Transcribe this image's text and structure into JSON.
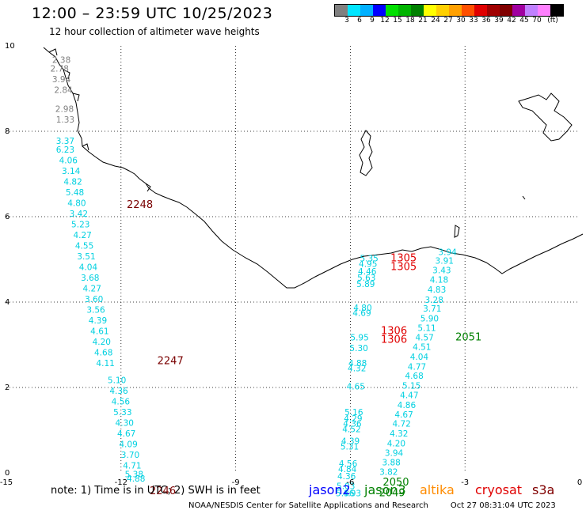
{
  "header": {
    "title": "12:00 – 23:59 UTC 10/25/2023",
    "subtitle": "12 hour collection of altimeter wave heights"
  },
  "colorbar": {
    "unit": "(ft)",
    "colors": [
      "#808080",
      "#00e5ff",
      "#00b0ff",
      "#0000ff",
      "#00e000",
      "#00b400",
      "#008000",
      "#ffff00",
      "#ffd000",
      "#ffa000",
      "#ff5000",
      "#e00000",
      "#a00000",
      "#800000",
      "#a000a0",
      "#c080ff",
      "#ff80ff",
      "#000000"
    ],
    "labels": [
      "3",
      "6",
      "9",
      "12",
      "15",
      "18",
      "21",
      "24",
      "27",
      "30",
      "33",
      "36",
      "39",
      "42",
      "45",
      "70"
    ]
  },
  "axes": {
    "x_ticks": [
      "-15",
      "-12",
      "-9",
      "-6",
      "-3",
      "0"
    ],
    "y_ticks": [
      "10",
      "8",
      "6",
      "4",
      "2",
      "0"
    ],
    "x_range": [
      -15,
      0
    ],
    "y_range": [
      0,
      10
    ]
  },
  "tracks": [
    {
      "color": "#808080",
      "points": [
        {
          "lon": -13.8,
          "lat": 9.6,
          "v": "2.38"
        },
        {
          "lon": -13.85,
          "lat": 9.4,
          "v": "2.78"
        },
        {
          "lon": -13.8,
          "lat": 9.15,
          "v": "3.94"
        },
        {
          "lon": -13.75,
          "lat": 8.9,
          "v": "2.84"
        },
        {
          "lon": -13.72,
          "lat": 8.45,
          "v": "2.98"
        },
        {
          "lon": -13.7,
          "lat": 8.2,
          "v": "1.33"
        }
      ]
    },
    {
      "color": "#00d0e0",
      "points": [
        {
          "lon": -13.7,
          "lat": 7.7,
          "v": "3.37"
        },
        {
          "lon": -13.7,
          "lat": 7.5,
          "v": "6.23"
        },
        {
          "lon": -13.62,
          "lat": 7.25,
          "v": "4.06"
        },
        {
          "lon": -13.55,
          "lat": 7.0,
          "v": "3.14"
        },
        {
          "lon": -13.5,
          "lat": 6.75,
          "v": "4.82"
        },
        {
          "lon": -13.45,
          "lat": 6.5,
          "v": "5.48"
        },
        {
          "lon": -13.4,
          "lat": 6.25,
          "v": "4.80"
        },
        {
          "lon": -13.35,
          "lat": 6.0,
          "v": "3.42"
        },
        {
          "lon": -13.3,
          "lat": 5.75,
          "v": "5.23"
        },
        {
          "lon": -13.25,
          "lat": 5.5,
          "v": "4.27"
        },
        {
          "lon": -13.2,
          "lat": 5.25,
          "v": "4.55"
        },
        {
          "lon": -13.15,
          "lat": 5.0,
          "v": "3.51"
        },
        {
          "lon": -13.1,
          "lat": 4.75,
          "v": "4.04"
        },
        {
          "lon": -13.05,
          "lat": 4.5,
          "v": "3.68"
        },
        {
          "lon": -13.0,
          "lat": 4.25,
          "v": "4.27"
        },
        {
          "lon": -12.95,
          "lat": 4.0,
          "v": "3.60"
        },
        {
          "lon": -12.9,
          "lat": 3.75,
          "v": "3.56"
        },
        {
          "lon": -12.85,
          "lat": 3.5,
          "v": "4.39"
        },
        {
          "lon": -12.8,
          "lat": 3.25,
          "v": "4.61"
        },
        {
          "lon": -12.75,
          "lat": 3.0,
          "v": "4.20"
        },
        {
          "lon": -12.7,
          "lat": 2.75,
          "v": "4.68"
        },
        {
          "lon": -12.65,
          "lat": 2.5,
          "v": "4.11"
        }
      ]
    },
    {
      "color": "#00d0e0",
      "points": [
        {
          "lon": -12.35,
          "lat": 2.1,
          "v": "5.10"
        },
        {
          "lon": -12.3,
          "lat": 1.85,
          "v": "4.36"
        },
        {
          "lon": -12.25,
          "lat": 1.6,
          "v": "4.56"
        },
        {
          "lon": -12.2,
          "lat": 1.35,
          "v": "5.33"
        },
        {
          "lon": -12.15,
          "lat": 1.1,
          "v": "4.30"
        },
        {
          "lon": -12.1,
          "lat": 0.85,
          "v": "4.67"
        },
        {
          "lon": -12.05,
          "lat": 0.6,
          "v": "4.09"
        },
        {
          "lon": -12.0,
          "lat": 0.35,
          "v": "3.70"
        },
        {
          "lon": -11.95,
          "lat": 0.1,
          "v": "4.71"
        },
        {
          "lon": -11.9,
          "lat": -0.1,
          "v": "5.38"
        },
        {
          "lon": -11.85,
          "lat": -0.2,
          "v": "4.88"
        }
      ]
    },
    {
      "color": "#00d0e0",
      "points": [
        {
          "lon": -5.75,
          "lat": 4.95,
          "v": "5.35"
        },
        {
          "lon": -5.78,
          "lat": 4.82,
          "v": "4.95"
        },
        {
          "lon": -5.8,
          "lat": 4.65,
          "v": "4.46"
        },
        {
          "lon": -5.82,
          "lat": 4.5,
          "v": "5.63"
        },
        {
          "lon": -5.84,
          "lat": 4.35,
          "v": "5.89"
        },
        {
          "lon": -5.92,
          "lat": 3.8,
          "v": "4.80"
        },
        {
          "lon": -5.94,
          "lat": 3.68,
          "v": "4.69"
        },
        {
          "lon": -6.0,
          "lat": 3.1,
          "v": "5.95"
        },
        {
          "lon": -6.02,
          "lat": 2.85,
          "v": "5.30"
        },
        {
          "lon": -6.05,
          "lat": 2.5,
          "v": "4.88"
        },
        {
          "lon": -6.07,
          "lat": 2.38,
          "v": "4.32"
        },
        {
          "lon": -6.1,
          "lat": 1.95,
          "v": "4.65"
        },
        {
          "lon": -6.15,
          "lat": 1.35,
          "v": "5.16"
        },
        {
          "lon": -6.17,
          "lat": 1.2,
          "v": "4.29"
        },
        {
          "lon": -6.19,
          "lat": 1.08,
          "v": "4.36"
        },
        {
          "lon": -6.21,
          "lat": 0.95,
          "v": "4.52"
        },
        {
          "lon": -6.24,
          "lat": 0.68,
          "v": "4.39"
        },
        {
          "lon": -6.26,
          "lat": 0.55,
          "v": "5.31"
        },
        {
          "lon": -6.3,
          "lat": 0.15,
          "v": "4.56"
        },
        {
          "lon": -6.32,
          "lat": 0.02,
          "v": "4.84"
        },
        {
          "lon": -6.34,
          "lat": -0.15,
          "v": "4.36"
        },
        {
          "lon": -6.36,
          "lat": -0.38,
          "v": "5.03"
        },
        {
          "lon": -6.38,
          "lat": -0.55,
          "v": "5.36"
        },
        {
          "lon": -6.2,
          "lat": -0.55,
          "v": "4.93"
        }
      ]
    },
    {
      "color": "#00d0e0",
      "points": [
        {
          "lon": -3.7,
          "lat": 5.1,
          "v": "3.94"
        },
        {
          "lon": -3.78,
          "lat": 4.9,
          "v": "3.91"
        },
        {
          "lon": -3.85,
          "lat": 4.68,
          "v": "3.43"
        },
        {
          "lon": -3.92,
          "lat": 4.45,
          "v": "4.18"
        },
        {
          "lon": -3.98,
          "lat": 4.22,
          "v": "4.83"
        },
        {
          "lon": -4.05,
          "lat": 3.98,
          "v": "3.28"
        },
        {
          "lon": -4.1,
          "lat": 3.78,
          "v": "3.71"
        },
        {
          "lon": -4.17,
          "lat": 3.55,
          "v": "5.90"
        },
        {
          "lon": -4.24,
          "lat": 3.32,
          "v": "5.11"
        },
        {
          "lon": -4.3,
          "lat": 3.1,
          "v": "4.57"
        },
        {
          "lon": -4.37,
          "lat": 2.88,
          "v": "4.51"
        },
        {
          "lon": -4.44,
          "lat": 2.65,
          "v": "4.04"
        },
        {
          "lon": -4.5,
          "lat": 2.42,
          "v": "4.77"
        },
        {
          "lon": -4.57,
          "lat": 2.2,
          "v": "4.68"
        },
        {
          "lon": -4.64,
          "lat": 1.97,
          "v": "5.15"
        },
        {
          "lon": -4.7,
          "lat": 1.75,
          "v": "4.47"
        },
        {
          "lon": -4.77,
          "lat": 1.52,
          "v": "4.86"
        },
        {
          "lon": -4.84,
          "lat": 1.3,
          "v": "4.67"
        },
        {
          "lon": -4.9,
          "lat": 1.08,
          "v": "4.72"
        },
        {
          "lon": -4.97,
          "lat": 0.85,
          "v": "4.32"
        },
        {
          "lon": -5.04,
          "lat": 0.62,
          "v": "4.20"
        },
        {
          "lon": -5.1,
          "lat": 0.4,
          "v": "3.94"
        },
        {
          "lon": -5.17,
          "lat": 0.18,
          "v": "3.88"
        },
        {
          "lon": -5.24,
          "lat": -0.05,
          "v": "3.82"
        }
      ]
    }
  ],
  "time_labels": [
    {
      "lon": -11.85,
      "lat": 6.2,
      "text": "2248",
      "color": "#7a0000"
    },
    {
      "lon": -11.05,
      "lat": 2.55,
      "text": "2247",
      "color": "#7a0000"
    },
    {
      "lon": -11.25,
      "lat": -0.5,
      "text": "2246",
      "color": "#7a0000"
    },
    {
      "lon": -4.95,
      "lat": 4.95,
      "text": "1305",
      "color": "#e00000"
    },
    {
      "lon": -4.95,
      "lat": 4.75,
      "text": "1305",
      "color": "#e00000"
    },
    {
      "lon": -5.2,
      "lat": 3.25,
      "text": "1306",
      "color": "#e00000"
    },
    {
      "lon": -5.2,
      "lat": 3.05,
      "text": "1306",
      "color": "#e00000"
    },
    {
      "lon": -3.25,
      "lat": 3.1,
      "text": "2051",
      "color": "#008000"
    },
    {
      "lon": -5.15,
      "lat": -0.3,
      "text": "2050",
      "color": "#008000"
    },
    {
      "lon": -5.25,
      "lat": -0.55,
      "text": "2049",
      "color": "#008000"
    }
  ],
  "legend": {
    "note": "note:  1) Time is in UTC;  2) SWH is in feet",
    "satellites": [
      {
        "name": "jason2",
        "color": "#0000ff"
      },
      {
        "name": "jason3",
        "color": "#008000"
      },
      {
        "name": "altika",
        "color": "#ff8c00"
      },
      {
        "name": "cryosat",
        "color": "#e00000"
      },
      {
        "name": "s3a",
        "color": "#800000"
      }
    ]
  },
  "footer": {
    "credit": "NOAA/NESDIS Center for Satellite Applications and Research",
    "timestamp": "Oct 27 08:31:04 UTC 2023"
  }
}
